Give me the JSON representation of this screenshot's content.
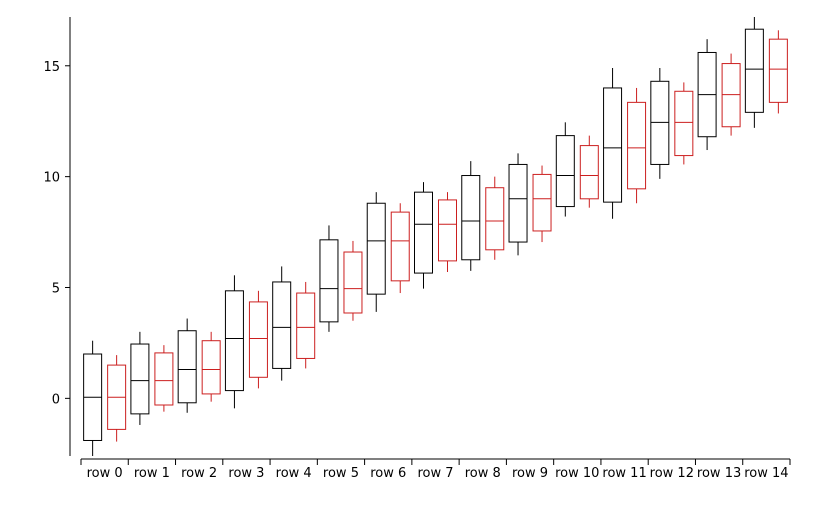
{
  "chart_data": {
    "type": "box",
    "categories": [
      "row 0",
      "row 1",
      "row 2",
      "row 3",
      "row 4",
      "row 5",
      "row 6",
      "row 7",
      "row 8",
      "row 9",
      "row 10",
      "row 11",
      "row 12",
      "row 13",
      "row 14"
    ],
    "ylim": [
      -2.6,
      17.2
    ],
    "yticks": [
      "0",
      "5",
      "10",
      "15"
    ],
    "ytick_values": [
      0,
      5,
      10,
      15
    ],
    "grid": false,
    "title": "",
    "xlabel": "",
    "ylabel": "",
    "series": [
      {
        "color": "#000000",
        "boxes": [
          {
            "whisker_low": -2.6,
            "q1": -1.9,
            "median": 0.05,
            "q3": 2.0,
            "whisker_high": 2.6
          },
          {
            "whisker_low": -1.2,
            "q1": -0.7,
            "median": 0.8,
            "q3": 2.45,
            "whisker_high": 3.0
          },
          {
            "whisker_low": -0.65,
            "q1": -0.2,
            "median": 1.3,
            "q3": 3.05,
            "whisker_high": 3.6
          },
          {
            "whisker_low": -0.45,
            "q1": 0.35,
            "median": 2.7,
            "q3": 4.85,
            "whisker_high": 5.55
          },
          {
            "whisker_low": 0.8,
            "q1": 1.35,
            "median": 3.2,
            "q3": 5.25,
            "whisker_high": 5.95
          },
          {
            "whisker_low": 3.0,
            "q1": 3.45,
            "median": 4.95,
            "q3": 7.15,
            "whisker_high": 7.8
          },
          {
            "whisker_low": 3.9,
            "q1": 4.7,
            "median": 7.1,
            "q3": 8.8,
            "whisker_high": 9.3
          },
          {
            "whisker_low": 4.95,
            "q1": 5.65,
            "median": 7.85,
            "q3": 9.3,
            "whisker_high": 9.75
          },
          {
            "whisker_low": 5.75,
            "q1": 6.25,
            "median": 8.0,
            "q3": 10.05,
            "whisker_high": 10.7
          },
          {
            "whisker_low": 6.45,
            "q1": 7.05,
            "median": 9.0,
            "q3": 10.55,
            "whisker_high": 11.05
          },
          {
            "whisker_low": 8.2,
            "q1": 8.65,
            "median": 10.05,
            "q3": 11.85,
            "whisker_high": 12.45
          },
          {
            "whisker_low": 8.1,
            "q1": 8.85,
            "median": 11.3,
            "q3": 14.0,
            "whisker_high": 14.9
          },
          {
            "whisker_low": 9.9,
            "q1": 10.55,
            "median": 12.45,
            "q3": 14.3,
            "whisker_high": 14.9
          },
          {
            "whisker_low": 11.2,
            "q1": 11.8,
            "median": 13.7,
            "q3": 15.6,
            "whisker_high": 16.2
          },
          {
            "whisker_low": 12.2,
            "q1": 12.9,
            "median": 14.85,
            "q3": 16.65,
            "whisker_high": 17.2
          }
        ]
      },
      {
        "color": "#cc1f1f",
        "boxes": [
          {
            "whisker_low": -1.95,
            "q1": -1.4,
            "median": 0.05,
            "q3": 1.5,
            "whisker_high": 1.95
          },
          {
            "whisker_low": -0.6,
            "q1": -0.3,
            "median": 0.8,
            "q3": 2.05,
            "whisker_high": 2.4
          },
          {
            "whisker_low": -0.15,
            "q1": 0.2,
            "median": 1.3,
            "q3": 2.6,
            "whisker_high": 3.0
          },
          {
            "whisker_low": 0.45,
            "q1": 0.95,
            "median": 2.7,
            "q3": 4.35,
            "whisker_high": 4.85
          },
          {
            "whisker_low": 1.35,
            "q1": 1.8,
            "median": 3.2,
            "q3": 4.75,
            "whisker_high": 5.25
          },
          {
            "whisker_low": 3.5,
            "q1": 3.85,
            "median": 4.95,
            "q3": 6.6,
            "whisker_high": 7.1
          },
          {
            "whisker_low": 4.75,
            "q1": 5.3,
            "median": 7.1,
            "q3": 8.4,
            "whisker_high": 8.8
          },
          {
            "whisker_low": 5.7,
            "q1": 6.2,
            "median": 7.85,
            "q3": 8.95,
            "whisker_high": 9.3
          },
          {
            "whisker_low": 6.25,
            "q1": 6.7,
            "median": 8.0,
            "q3": 9.5,
            "whisker_high": 10.0
          },
          {
            "whisker_low": 7.05,
            "q1": 7.55,
            "median": 9.0,
            "q3": 10.1,
            "whisker_high": 10.5
          },
          {
            "whisker_low": 8.6,
            "q1": 9.0,
            "median": 10.05,
            "q3": 11.4,
            "whisker_high": 11.85
          },
          {
            "whisker_low": 8.8,
            "q1": 9.45,
            "median": 11.3,
            "q3": 13.35,
            "whisker_high": 14.0
          },
          {
            "whisker_low": 10.55,
            "q1": 10.95,
            "median": 12.45,
            "q3": 13.85,
            "whisker_high": 14.25
          },
          {
            "whisker_low": 11.85,
            "q1": 12.25,
            "median": 13.7,
            "q3": 15.1,
            "whisker_high": 15.55
          },
          {
            "whisker_low": 12.85,
            "q1": 13.35,
            "median": 14.85,
            "q3": 16.2,
            "whisker_high": 16.6
          }
        ]
      }
    ]
  }
}
